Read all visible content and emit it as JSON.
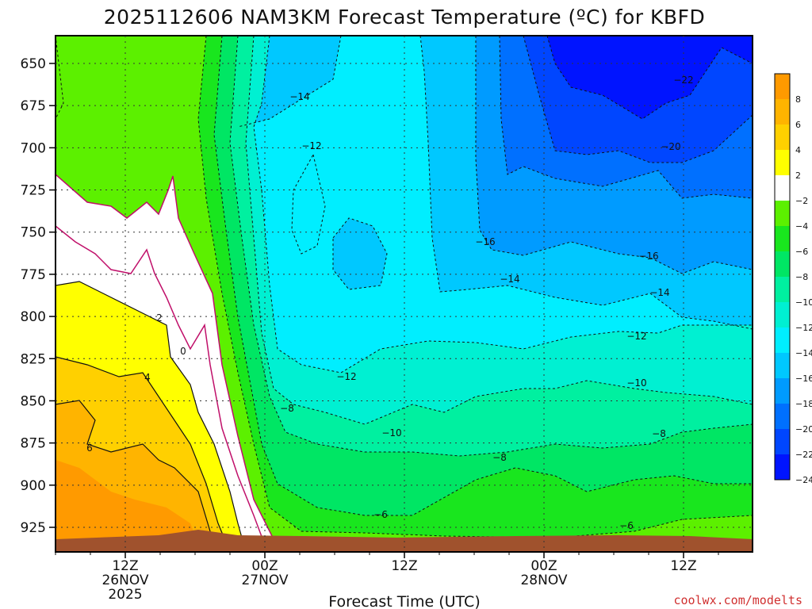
{
  "chart_data": {
    "type": "heatmap",
    "title": "2025112606 NAM3KM Forecast Temperature (ºC) for KBFD",
    "xlabel": "Forecast Time (UTC)",
    "ylabel": "",
    "y_ticks": [
      "650",
      "675",
      "700",
      "725",
      "750",
      "775",
      "800",
      "825",
      "850",
      "875",
      "900",
      "925"
    ],
    "ylim": [
      640,
      935
    ],
    "x_ticks": [
      {
        "line1": "12Z",
        "line2": "26NOV",
        "line3": "2025"
      },
      {
        "line1": "00Z",
        "line2": "27NOV",
        "line3": ""
      },
      {
        "line1": "12Z",
        "line2": "",
        "line3": ""
      },
      {
        "line1": "00Z",
        "line2": "28NOV",
        "line3": ""
      },
      {
        "line1": "12Z",
        "line2": "",
        "line3": ""
      }
    ],
    "colorbar_labels": [
      "8",
      "6",
      "4",
      "2",
      "−2",
      "−4",
      "−6",
      "−8",
      "−10",
      "−12",
      "−14",
      "−16",
      "−18",
      "−20",
      "−22",
      "−24"
    ],
    "colorbar_colors": [
      "#ff9a00",
      "#ffb400",
      "#ffd000",
      "#ffff00",
      "#ffffff",
      "#5cf000",
      "#19e61e",
      "#00e664",
      "#00f0a0",
      "#00f0d2",
      "#00eeff",
      "#00c8ff",
      "#009bff",
      "#0070ff",
      "#0046ff",
      "#0014ff"
    ],
    "contour_labels": [
      "−14",
      "−12",
      "−22",
      "−20",
      "−16",
      "−16",
      "−14",
      "−14",
      "−12",
      "−12",
      "−10",
      "−10",
      "−8",
      "−8",
      "−8",
      "−6",
      "−6",
      "2",
      "0",
      "4",
      "6"
    ],
    "fill_levels_c": [
      8,
      6,
      4,
      2,
      -2,
      -4,
      -6,
      -8,
      -10,
      -12,
      -14,
      -16,
      -18,
      -20,
      -22,
      -24
    ],
    "terrain_color": "#a0522d"
  },
  "credit": "coolwx.com/modelts"
}
